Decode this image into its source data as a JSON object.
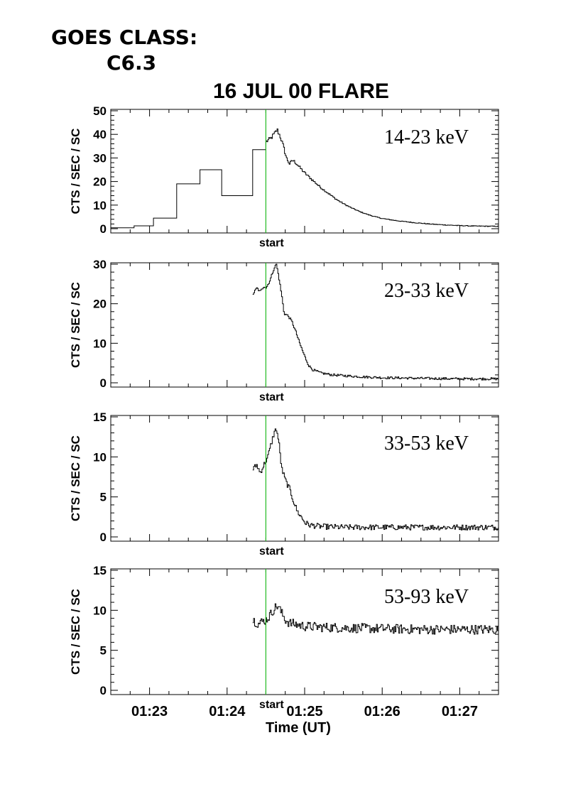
{
  "header": {
    "goes_label": "GOES CLASS:",
    "goes_value": "C6.3"
  },
  "chart_data": {
    "type": "line",
    "title": "16 JUL 00 FLARE",
    "xlabel": "Time (UT)",
    "ylabel": "CTS / SEC / SC",
    "x_tick_labels": [
      "01:23",
      "01:24",
      "01:25",
      "01:26",
      "01:27"
    ],
    "x_tick_values_min": [
      83,
      84,
      85,
      86,
      87
    ],
    "xlim_min": [
      82.5,
      87.5
    ],
    "marker": {
      "x_min": 84.5,
      "label": "start",
      "color": "#22bb22"
    },
    "panels": [
      {
        "label": "14-23 keV",
        "ylim": [
          0,
          50
        ],
        "yticks": [
          0,
          10,
          20,
          30,
          40,
          50
        ],
        "steps": [
          [
            82.5,
            0.4
          ],
          [
            82.8,
            1.2
          ],
          [
            83.05,
            4.5
          ],
          [
            83.35,
            19
          ],
          [
            83.65,
            25
          ],
          [
            83.93,
            14
          ],
          [
            84.33,
            33.5
          ]
        ],
        "series": [
          [
            84.5,
            37
          ],
          [
            84.55,
            38
          ],
          [
            84.6,
            40
          ],
          [
            84.64,
            42
          ],
          [
            84.68,
            39
          ],
          [
            84.72,
            35
          ],
          [
            84.76,
            30
          ],
          [
            84.8,
            27.5
          ],
          [
            84.84,
            29
          ],
          [
            84.88,
            28
          ],
          [
            84.93,
            26
          ],
          [
            85.0,
            23.5
          ],
          [
            85.1,
            20.5
          ],
          [
            85.2,
            17.5
          ],
          [
            85.3,
            15
          ],
          [
            85.4,
            12.5
          ],
          [
            85.5,
            10.5
          ],
          [
            85.6,
            8.8
          ],
          [
            85.7,
            7.3
          ],
          [
            85.8,
            6.1
          ],
          [
            85.9,
            5.1
          ],
          [
            86.0,
            4.3
          ],
          [
            86.2,
            3.3
          ],
          [
            86.4,
            2.6
          ],
          [
            86.6,
            2.0
          ],
          [
            86.8,
            1.6
          ],
          [
            87.0,
            1.3
          ],
          [
            87.2,
            1.1
          ],
          [
            87.5,
            1.0
          ]
        ]
      },
      {
        "label": "23-33 keV",
        "ylim": [
          0,
          30
        ],
        "yticks": [
          0,
          10,
          20,
          30
        ],
        "x_start": 84.33,
        "series": [
          [
            84.33,
            22.5
          ],
          [
            84.38,
            24
          ],
          [
            84.42,
            23
          ],
          [
            84.47,
            24.5
          ],
          [
            84.5,
            24
          ],
          [
            84.55,
            26
          ],
          [
            84.6,
            29
          ],
          [
            84.63,
            30
          ],
          [
            84.66,
            27
          ],
          [
            84.7,
            22
          ],
          [
            84.73,
            17.5
          ],
          [
            84.78,
            17
          ],
          [
            84.83,
            15.5
          ],
          [
            84.88,
            13
          ],
          [
            84.93,
            10
          ],
          [
            85.0,
            6.5
          ],
          [
            85.05,
            4.3
          ],
          [
            85.1,
            3.3
          ],
          [
            85.2,
            2.5
          ],
          [
            85.35,
            2.0
          ],
          [
            85.5,
            1.8
          ],
          [
            85.75,
            1.5
          ],
          [
            86.0,
            1.3
          ],
          [
            86.3,
            1.2
          ],
          [
            86.6,
            1.1
          ],
          [
            87.0,
            1.0
          ],
          [
            87.5,
            1.0
          ]
        ]
      },
      {
        "label": "33-53 keV",
        "ylim": [
          0,
          15
        ],
        "yticks": [
          0,
          5,
          10,
          15
        ],
        "x_start": 84.33,
        "series": [
          [
            84.33,
            8.5
          ],
          [
            84.38,
            9
          ],
          [
            84.42,
            8
          ],
          [
            84.47,
            9
          ],
          [
            84.52,
            10
          ],
          [
            84.56,
            11.5
          ],
          [
            84.6,
            13
          ],
          [
            84.63,
            13.5
          ],
          [
            84.66,
            12
          ],
          [
            84.7,
            8.5
          ],
          [
            84.75,
            7
          ],
          [
            84.8,
            6
          ],
          [
            84.85,
            4.5
          ],
          [
            84.9,
            3.2
          ],
          [
            84.95,
            2.5
          ],
          [
            85.0,
            1.8
          ],
          [
            85.05,
            1.5
          ],
          [
            85.2,
            1.3
          ],
          [
            85.5,
            1.2
          ],
          [
            85.75,
            1.2
          ],
          [
            86.0,
            1.2
          ],
          [
            86.5,
            1.2
          ],
          [
            87.0,
            1.2
          ],
          [
            87.5,
            1.2
          ]
        ]
      },
      {
        "label": "53-93 keV",
        "ylim": [
          0,
          15
        ],
        "yticks": [
          0,
          5,
          10,
          15
        ],
        "x_start": 84.33,
        "series": [
          [
            84.33,
            8.8
          ],
          [
            84.4,
            8.3
          ],
          [
            84.45,
            8.6
          ],
          [
            84.5,
            8.8
          ],
          [
            84.55,
            9.4
          ],
          [
            84.6,
            10.2
          ],
          [
            84.65,
            10.6
          ],
          [
            84.7,
            9.6
          ],
          [
            84.75,
            8.8
          ],
          [
            84.8,
            8.4
          ],
          [
            84.9,
            8.2
          ],
          [
            85.0,
            8.0
          ],
          [
            85.2,
            7.9
          ],
          [
            85.5,
            7.8
          ],
          [
            86.0,
            7.7
          ],
          [
            86.5,
            7.6
          ],
          [
            87.0,
            7.6
          ],
          [
            87.5,
            7.6
          ]
        ]
      }
    ]
  }
}
